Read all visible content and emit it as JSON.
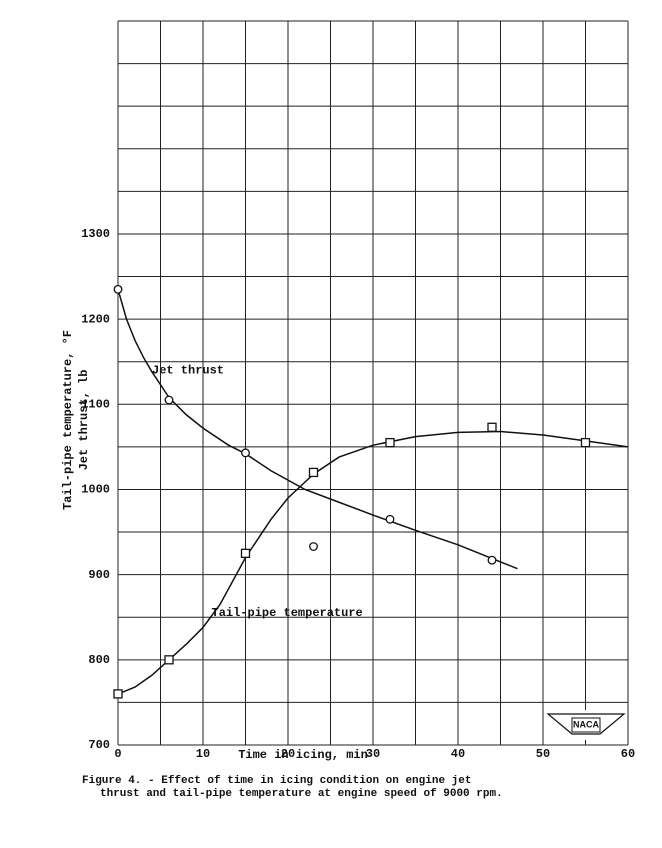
{
  "chart_data": {
    "type": "scatter-fit",
    "x_label": "Time in icing, min",
    "y_label": [
      "Tail-pipe temperature, °F",
      "Jet thrust, lb"
    ],
    "caption": [
      "Figure 4. - Effect of time in icing condition on engine jet",
      "thrust and tail-pipe temperature at engine speed of 9000 rpm."
    ],
    "logo": "NACA",
    "xlim": [
      0,
      60
    ],
    "ylim": [
      700,
      1550
    ],
    "xticks": [
      0,
      10,
      20,
      30,
      40,
      50,
      60
    ],
    "yticks": [
      700,
      800,
      900,
      1000,
      1100,
      1200,
      1300
    ],
    "xgrid": [
      0,
      5,
      10,
      15,
      20,
      25,
      30,
      35,
      40,
      45,
      50,
      55,
      60
    ],
    "ygrid": [
      700,
      750,
      800,
      850,
      900,
      950,
      1000,
      1050,
      1100,
      1150,
      1200,
      1250,
      1300,
      1350,
      1400,
      1450,
      1500,
      1550
    ],
    "grid": true,
    "annotations": [
      {
        "text": "Jet thrust",
        "x": 4,
        "y": 1140
      },
      {
        "text": "Tail-pipe temperature",
        "x": 11,
        "y": 855
      }
    ],
    "series": [
      {
        "marker": "circle",
        "color": "#111111",
        "x": [
          0,
          6,
          15,
          23,
          32,
          44
        ],
        "values": [
          1235,
          1105,
          1043,
          933,
          965,
          917
        ],
        "fit_x": [
          0,
          1,
          2,
          3,
          4,
          6,
          8,
          10,
          13,
          15,
          18,
          22,
          26,
          30,
          35,
          40,
          47
        ],
        "fit_y": [
          1235,
          1200,
          1175,
          1155,
          1138,
          1108,
          1088,
          1072,
          1052,
          1042,
          1022,
          1000,
          985,
          970,
          952,
          935,
          907
        ]
      },
      {
        "marker": "square",
        "color": "#111111",
        "x": [
          0,
          6,
          15,
          23,
          32,
          44,
          55
        ],
        "values": [
          760,
          800,
          925,
          1020,
          1055,
          1073,
          1055
        ],
        "fit_x": [
          0,
          2,
          4,
          6,
          8,
          10,
          12,
          15,
          18,
          20,
          23,
          26,
          30,
          35,
          40,
          45,
          50,
          55,
          60
        ],
        "fit_y": [
          760,
          768,
          782,
          800,
          818,
          838,
          865,
          920,
          965,
          990,
          1018,
          1038,
          1052,
          1062,
          1067,
          1068,
          1064,
          1057,
          1050
        ]
      }
    ]
  }
}
